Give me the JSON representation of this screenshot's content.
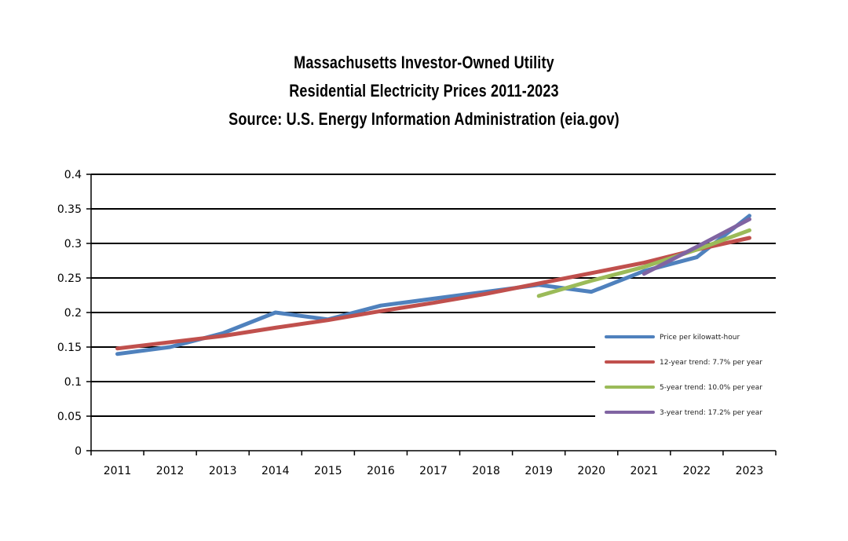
{
  "title_lines": [
    "Massachusetts Investor-Owned Utility",
    "Residential Electricity Prices 2011-2023",
    "Source: U.S. Energy Information Administration (eia.gov)"
  ],
  "chart_data": {
    "type": "line",
    "title": "Massachusetts Investor-Owned Utility Residential Electricity Prices 2011-2023 Source: U.S. Energy Information Administration (eia.gov)",
    "xlabel": "",
    "ylabel": "",
    "x": [
      "2011",
      "2012",
      "2013",
      "2014",
      "2015",
      "2016",
      "2017",
      "2018",
      "2019",
      "2020",
      "2021",
      "2022",
      "2023"
    ],
    "ylim": [
      0,
      0.4
    ],
    "yticks": [
      "0",
      "0.05",
      "0.1",
      "0.15",
      "0.2",
      "0.25",
      "0.3",
      "0.35",
      "0.4"
    ],
    "grid": true,
    "legend_position": "bottom-right",
    "series": [
      {
        "name": "Price per kilowatt-hour",
        "color": "#4f81bd",
        "values": [
          0.14,
          0.15,
          0.17,
          0.2,
          0.19,
          0.21,
          0.22,
          0.23,
          0.24,
          0.23,
          0.26,
          0.28,
          0.34
        ]
      },
      {
        "name": "12-year trend: 7.7% per year",
        "color": "#c0504d",
        "values": [
          0.148,
          0.157,
          0.166,
          0.178,
          0.189,
          0.202,
          0.214,
          0.227,
          0.242,
          0.257,
          0.272,
          0.291,
          0.308
        ]
      },
      {
        "name": "5-year trend: 10.0% per year",
        "color": "#9bbb59",
        "values": [
          null,
          null,
          null,
          null,
          null,
          null,
          null,
          null,
          0.224,
          0.246,
          0.266,
          0.291,
          0.319
        ]
      },
      {
        "name": "3-year trend: 17.2% per year",
        "color": "#8064a2",
        "values": [
          null,
          null,
          null,
          null,
          null,
          null,
          null,
          null,
          null,
          null,
          0.256,
          0.295,
          0.335
        ]
      }
    ]
  }
}
